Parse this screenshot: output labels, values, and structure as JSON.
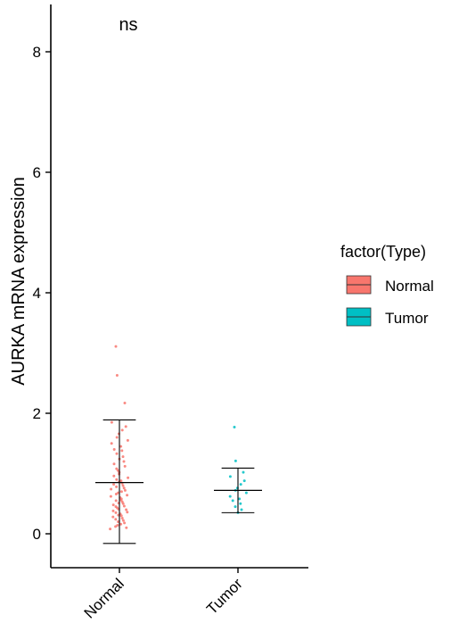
{
  "chart_data": {
    "type": "scatter",
    "ylabel": "AURKA mRNA expression",
    "xlabel": "",
    "categories": [
      "Normal",
      "Tumor"
    ],
    "ylim": [
      -0.55,
      8.8
    ],
    "yticks": [
      0,
      2,
      4,
      6,
      8
    ],
    "significance_label": "ns",
    "legend": {
      "title": "factor(Type)",
      "position": "right",
      "entries": [
        {
          "name": "Normal",
          "color": "#F8766D"
        },
        {
          "name": "Tumor",
          "color": "#00BFC4"
        }
      ]
    },
    "series": [
      {
        "name": "Normal",
        "color": "#F8766D",
        "mean": 0.85,
        "error_low": -0.16,
        "error_high": 1.89,
        "values": [
          3.11,
          2.63,
          2.17,
          1.85,
          1.78,
          1.72,
          1.66,
          1.6,
          1.55,
          1.5,
          1.45,
          1.4,
          1.38,
          1.33,
          1.28,
          1.24,
          1.2,
          1.16,
          1.12,
          1.08,
          1.05,
          1.02,
          0.99,
          0.96,
          0.93,
          0.9,
          0.88,
          0.86,
          0.84,
          0.82,
          0.8,
          0.78,
          0.76,
          0.74,
          0.72,
          0.7,
          0.68,
          0.66,
          0.64,
          0.62,
          0.6,
          0.58,
          0.56,
          0.55,
          0.53,
          0.51,
          0.5,
          0.48,
          0.46,
          0.45,
          0.43,
          0.41,
          0.4,
          0.38,
          0.36,
          0.35,
          0.33,
          0.31,
          0.3,
          0.28,
          0.26,
          0.24,
          0.22,
          0.2,
          0.18,
          0.16,
          0.14,
          0.12,
          0.1,
          0.08
        ]
      },
      {
        "name": "Tumor",
        "color": "#00BFC4",
        "mean": 0.72,
        "error_low": 0.35,
        "error_high": 1.09,
        "values": [
          1.77,
          1.21,
          1.02,
          0.95,
          0.88,
          0.82,
          0.76,
          0.72,
          0.68,
          0.62,
          0.58,
          0.55,
          0.5,
          0.45,
          0.4,
          0.35
        ]
      }
    ]
  }
}
